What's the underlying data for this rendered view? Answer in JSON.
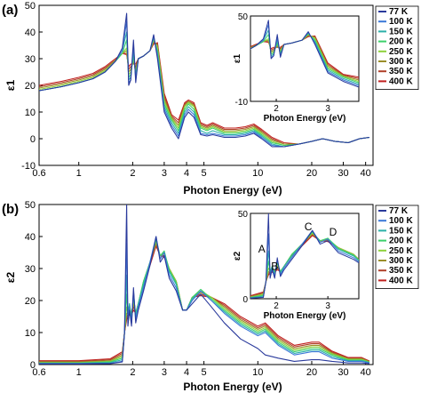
{
  "chart_data": [
    {
      "type": "line",
      "panel_label": "(a)",
      "xlabel": "Photon Energy (eV)",
      "ylabel": "ε1",
      "x_scale": "log",
      "xlim": [
        0.6,
        44
      ],
      "ylim": [
        -10,
        50
      ],
      "x_ticks": [
        "0.6",
        "1",
        "2",
        "3",
        "4",
        "5",
        "10",
        "20",
        "30",
        "40"
      ],
      "y_ticks": [
        "-10",
        "0",
        "10",
        "20",
        "30",
        "40",
        "50"
      ],
      "legend": [
        "77 K",
        "100 K",
        "150 K",
        "200 K",
        "250 K",
        "300 K",
        "350 K",
        "400 K"
      ],
      "legend_position": "right",
      "x": [
        0.6,
        0.8,
        1.0,
        1.2,
        1.4,
        1.6,
        1.75,
        1.85,
        1.9,
        1.95,
        2.02,
        2.08,
        2.15,
        2.3,
        2.5,
        2.62,
        2.75,
        3.0,
        3.3,
        3.6,
        3.9,
        4.1,
        4.4,
        4.8,
        5.2,
        5.6,
        6.5,
        7.5,
        8.5,
        9.5,
        10.5,
        12,
        14,
        17,
        20,
        23,
        27,
        32,
        37,
        42
      ],
      "series": [
        {
          "name": "77 K",
          "values": [
            18,
            19.5,
            21,
            22.5,
            25,
            29,
            34,
            47,
            20,
            22,
            37,
            21,
            30,
            31,
            33,
            39,
            30,
            10,
            4,
            0,
            8,
            10,
            8,
            1.5,
            1,
            1.5,
            0.5,
            0.5,
            1,
            2,
            0,
            -3,
            -3,
            -2,
            -1,
            0,
            -1,
            -1.5,
            0,
            0.5
          ]
        },
        {
          "name": "100 K",
          "values": [
            18,
            19.5,
            21,
            22.5,
            25,
            29,
            33,
            44,
            21,
            22,
            35,
            22,
            30,
            31,
            33,
            38.5,
            31,
            11,
            5,
            1,
            9,
            11,
            9,
            2,
            1.5,
            2,
            1,
            1,
            1.5,
            2.5,
            0.5,
            -2.5,
            -3,
            -2,
            -1,
            0,
            -1,
            -1.5,
            0,
            0.5
          ]
        },
        {
          "name": "150 K",
          "values": [
            18,
            19.5,
            21,
            22.5,
            25,
            29,
            33,
            40,
            22,
            23,
            33,
            23,
            30,
            31,
            33,
            38,
            32,
            12,
            6,
            2,
            10,
            12,
            10,
            3,
            2,
            3,
            1.5,
            1.5,
            2,
            3,
            1,
            -2,
            -3,
            -2,
            -1,
            0,
            -1,
            -1.5,
            0,
            0.5
          ]
        },
        {
          "name": "200 K",
          "values": [
            18,
            19.5,
            21,
            22.5,
            25,
            29,
            32,
            37,
            23,
            24,
            31,
            24,
            30,
            31,
            33,
            37.5,
            33,
            13,
            7,
            3,
            11,
            13,
            11,
            4,
            3,
            4,
            2,
            2,
            2.5,
            3.5,
            1.5,
            -1.5,
            -2.5,
            -2,
            -1,
            0,
            -1,
            -1.5,
            0,
            0.5
          ]
        },
        {
          "name": "250 K",
          "values": [
            18.5,
            20,
            21.5,
            23,
            25.5,
            29,
            32,
            34,
            24,
            25,
            30,
            25,
            30,
            31,
            33,
            37,
            34,
            14,
            7.5,
            4,
            12,
            13.5,
            12,
            4.5,
            3.5,
            4.5,
            2.5,
            2.5,
            3,
            4,
            2,
            -1,
            -2.5,
            -2,
            -1,
            0,
            -1,
            -1.5,
            0,
            0.5
          ]
        },
        {
          "name": "300 K",
          "values": [
            19,
            20.5,
            22,
            23.5,
            26,
            29.5,
            32,
            33,
            25,
            26,
            29,
            26,
            30,
            31,
            33,
            36.5,
            35,
            15,
            8,
            5,
            12.5,
            14,
            12.5,
            5,
            4,
            5,
            3,
            3,
            3.5,
            4.5,
            2.5,
            -0.5,
            -2,
            -2,
            -1,
            0,
            -1,
            -1.5,
            0,
            0.5
          ]
        },
        {
          "name": "350 K",
          "values": [
            19.5,
            21,
            22.5,
            24,
            26.5,
            29.5,
            32,
            32,
            26,
            27,
            28.5,
            27,
            30,
            31,
            33,
            36,
            35.5,
            16,
            8.5,
            6,
            13,
            14,
            13,
            5.5,
            4.5,
            5.5,
            3.5,
            3.5,
            4,
            5,
            3,
            0,
            -2,
            -2,
            -1,
            0,
            -1,
            -1.5,
            0,
            0.5
          ]
        },
        {
          "name": "400 K",
          "values": [
            20,
            21.5,
            23,
            24.5,
            27,
            30,
            32,
            31.5,
            27,
            28,
            28,
            28,
            30,
            31,
            33,
            35.5,
            36,
            17,
            9,
            7,
            13.5,
            14.5,
            13.5,
            6,
            5,
            6,
            4,
            4,
            4.5,
            5.5,
            3.5,
            0.5,
            -1.5,
            -2,
            -1,
            0,
            -1,
            -1.5,
            0,
            0.5
          ]
        }
      ],
      "inset": {
        "xlabel": "Photon Energy (eV)",
        "ylabel": "ε1",
        "xlim": [
          1.5,
          3.6
        ],
        "ylim": [
          -10,
          50
        ],
        "x_ticks": [
          "2",
          "3"
        ],
        "y_ticks": [
          "-10",
          "50"
        ]
      }
    },
    {
      "type": "line",
      "panel_label": "(b)",
      "xlabel": "Photon Energy (eV)",
      "ylabel": "ε2",
      "x_scale": "log",
      "xlim": [
        0.6,
        44
      ],
      "ylim": [
        0,
        50
      ],
      "x_ticks": [
        "0.6",
        "1",
        "2",
        "3",
        "4",
        "5",
        "10",
        "20",
        "30",
        "40"
      ],
      "y_ticks": [
        "0",
        "10",
        "20",
        "30",
        "40",
        "50"
      ],
      "legend": [
        "77 K",
        "100 K",
        "150 K",
        "200 K",
        "250 K",
        "300 K",
        "350 K",
        "400 K"
      ],
      "legend_position": "right",
      "x": [
        0.6,
        1.0,
        1.5,
        1.75,
        1.8,
        1.85,
        1.88,
        1.92,
        1.97,
        2.02,
        2.08,
        2.15,
        2.3,
        2.5,
        2.7,
        2.85,
        3.0,
        3.2,
        3.5,
        3.8,
        4.0,
        4.3,
        4.8,
        5.5,
        6.5,
        8,
        10,
        11,
        13,
        16,
        20,
        22,
        26,
        32,
        38,
        42
      ],
      "series": [
        {
          "name": "77 K",
          "values": [
            0.2,
            0.2,
            0.3,
            0.8,
            10,
            50,
            12,
            17,
            12,
            24,
            13,
            17,
            23,
            31,
            40,
            32,
            34,
            27,
            23,
            17,
            17,
            19,
            22,
            18,
            13,
            8,
            5,
            3,
            2,
            1,
            1.5,
            1.5,
            1,
            0.5,
            0.5,
            0.3
          ]
        },
        {
          "name": "100 K",
          "values": [
            0.3,
            0.3,
            0.4,
            1,
            10,
            38,
            13,
            18,
            13,
            23,
            14,
            18,
            24,
            32,
            40,
            33,
            35,
            28,
            24,
            17,
            17,
            20,
            23,
            20,
            16,
            12,
            9,
            10,
            6,
            3,
            4,
            4,
            2,
            1,
            1,
            0.5
          ]
        },
        {
          "name": "150 K",
          "values": [
            0.4,
            0.4,
            0.6,
            1.5,
            10,
            28,
            15,
            19,
            14,
            22,
            15,
            19,
            25,
            32,
            39.5,
            33,
            35,
            29,
            25,
            17,
            17,
            20.5,
            23,
            20,
            16.5,
            12.5,
            9.5,
            10.5,
            6.5,
            3.5,
            4.5,
            4.5,
            2.5,
            1.2,
            1.2,
            0.6
          ]
        },
        {
          "name": "200 K",
          "values": [
            0.5,
            0.5,
            0.8,
            2,
            10,
            22,
            16,
            19,
            15,
            21,
            16,
            19,
            26,
            32,
            39,
            34,
            35.5,
            29.5,
            25.5,
            17,
            17,
            21,
            23.5,
            20.5,
            17,
            13,
            10,
            11,
            7,
            4,
            5,
            5,
            3,
            1.4,
            1.4,
            0.7
          ]
        },
        {
          "name": "250 K",
          "values": [
            0.6,
            0.6,
            1,
            2.5,
            10,
            18,
            16,
            18,
            16,
            20,
            16,
            19,
            26,
            32,
            38.5,
            34,
            35,
            30,
            26,
            17,
            17,
            21,
            23,
            21,
            17.5,
            13.5,
            10.5,
            11.5,
            7.5,
            4.5,
            5.5,
            5.5,
            3.3,
            1.6,
            1.6,
            0.8
          ]
        },
        {
          "name": "300 K",
          "values": [
            0.8,
            0.8,
            1.2,
            3,
            10,
            16,
            16,
            17,
            16,
            19,
            16,
            19,
            26,
            32,
            38,
            34,
            34.5,
            30,
            26,
            17,
            17,
            21,
            22.5,
            21,
            18,
            14,
            11,
            12,
            8,
            5,
            6,
            6,
            3.6,
            1.8,
            1.8,
            0.9
          ]
        },
        {
          "name": "350 K",
          "values": [
            1,
            1,
            1.5,
            3.5,
            10,
            15,
            15.5,
            16,
            16,
            18,
            16,
            19,
            25.5,
            31.5,
            37.5,
            34,
            34,
            30,
            26,
            17,
            17,
            21,
            22,
            21,
            18.5,
            14.5,
            11.5,
            12.5,
            8.5,
            5.5,
            6.5,
            6.5,
            3.9,
            2,
            2,
            1
          ]
        },
        {
          "name": "400 K",
          "values": [
            1.2,
            1.2,
            1.8,
            4,
            10,
            14,
            15,
            15.5,
            15.5,
            17,
            16,
            19,
            25,
            31,
            37,
            34,
            33.5,
            30,
            26,
            17,
            17,
            21,
            21.5,
            21,
            19,
            15,
            12,
            13,
            9,
            6,
            7,
            7,
            4.2,
            2.2,
            2.2,
            1.1
          ]
        }
      ],
      "inset": {
        "xlabel": "Photon Energy (eV)",
        "ylabel": "ε2",
        "xlim": [
          1.5,
          3.6
        ],
        "ylim": [
          0,
          50
        ],
        "x_ticks": [
          "2",
          "3"
        ],
        "y_ticks": [
          "0",
          "50"
        ],
        "annotations": [
          "A",
          "B",
          "C",
          "D"
        ]
      }
    }
  ],
  "colors": [
    "#2a3a9c",
    "#3b78d8",
    "#2bb0a8",
    "#3cd06a",
    "#8ed13a",
    "#9b8f2a",
    "#b0402a",
    "#c0201e"
  ]
}
